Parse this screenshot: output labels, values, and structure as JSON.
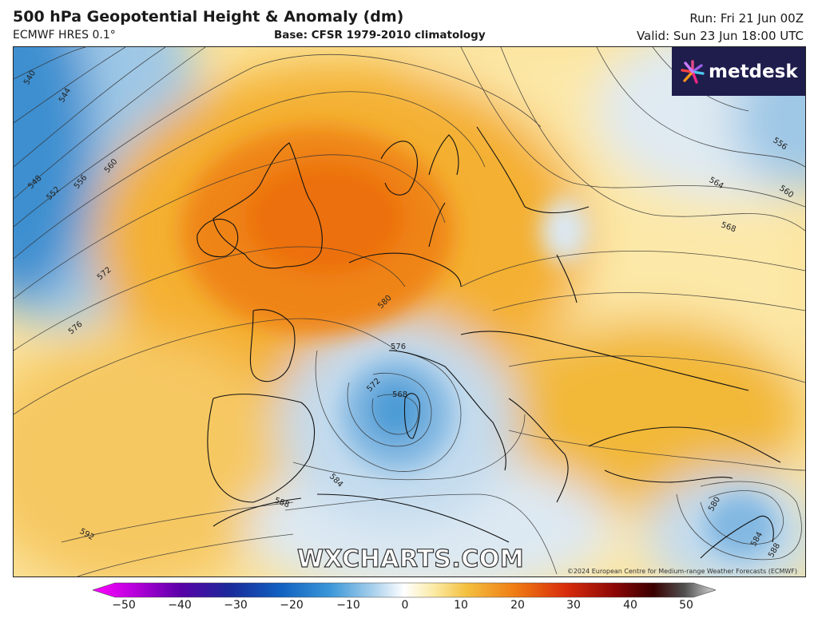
{
  "header": {
    "title": "500 hPa Geopotential Height & Anomaly (dm)",
    "model": "ECMWF HRES 0.1°",
    "base": "Base: CFSR 1979-2010 climatology",
    "run": "Run: Fri 21 Jun 00Z",
    "valid": "Valid: Sun 23 Jun 18:00 UTC"
  },
  "logo": {
    "text": "metdesk"
  },
  "watermark": "WXCHARTS.COM",
  "copyright": "©2024 European Centre for Medium-range Weather Forecasts (ECMWF)",
  "contour_labels": [
    "540",
    "544",
    "548",
    "552",
    "556",
    "560",
    "572",
    "576",
    "576",
    "580",
    "572",
    "568",
    "584",
    "588",
    "592",
    "556",
    "560",
    "564",
    "568",
    "580",
    "584",
    "588"
  ],
  "colorbar": {
    "ticks": [
      "−50",
      "−40",
      "−30",
      "−20",
      "−10",
      "0",
      "10",
      "20",
      "30",
      "40",
      "50"
    ],
    "colors": [
      "#ff00ff",
      "#b000d0",
      "#6000b0",
      "#2030a0",
      "#1060c0",
      "#3090d8",
      "#80c0e8",
      "#c8e0f0",
      "#fff8d8",
      "#f8e080",
      "#f0b020",
      "#f07010",
      "#e03010",
      "#b00808",
      "#600000",
      "#303030",
      "#c0c0c0"
    ]
  },
  "anomaly_colors": {
    "strong_positive": "#ef7010",
    "positive": "#f4b030",
    "weak_positive": "#fbe39a",
    "neutral": "#fff7dc",
    "weak_negative": "#dde9f3",
    "negative": "#a7cbe6",
    "strong_negative": "#4e9cd6"
  }
}
